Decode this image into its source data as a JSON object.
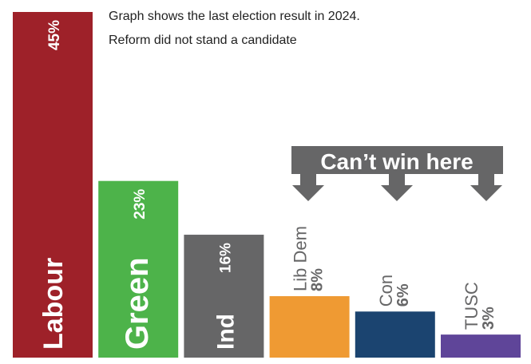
{
  "chart_data": {
    "type": "bar",
    "title": "",
    "notes": [
      "Graph shows the last election result in 2024.",
      "Reform did not stand a candidate"
    ],
    "categories": [
      "Labour",
      "Green",
      "Ind",
      "Lib Dem",
      "Con",
      "TUSC"
    ],
    "values": [
      45,
      23,
      16,
      8,
      6,
      3
    ],
    "value_labels": [
      "45%",
      "23%",
      "16%",
      "8%",
      "6%",
      "3%"
    ],
    "colors": [
      "#9e2129",
      "#4db34a",
      "#666667",
      "#ef9a33",
      "#1b4470",
      "#5f4599"
    ],
    "ylim": [
      0,
      45
    ],
    "grid": false,
    "annotation": {
      "text": "Can’t win here",
      "targets": [
        "Lib Dem",
        "Con",
        "TUSC"
      ],
      "color": "#666667"
    }
  }
}
